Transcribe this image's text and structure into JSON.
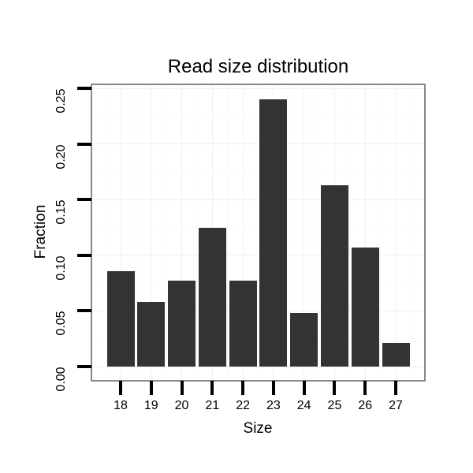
{
  "chart_data": {
    "type": "bar",
    "title": "Read size distribution",
    "xlabel": "Size",
    "ylabel": "Fraction",
    "categories": [
      "18",
      "19",
      "20",
      "21",
      "22",
      "23",
      "24",
      "25",
      "26",
      "27"
    ],
    "values": [
      0.086,
      0.058,
      0.077,
      0.125,
      0.077,
      0.24,
      0.048,
      0.163,
      0.107,
      0.021
    ],
    "y_tick_labels": [
      "0.00",
      "0.05",
      "0.10",
      "0.15",
      "0.20",
      "0.25"
    ],
    "ylim": [
      0,
      0.2525
    ],
    "grid": "on",
    "grid_minor_step": 0.025,
    "legend_position": "none",
    "colors": {
      "bar_fill": "#333333",
      "panel_border": "#878787",
      "tick": "#000000",
      "grid_major": "#f0f0f0",
      "grid_minor": "#fafafa",
      "background": "#ffffff",
      "text": "#000000"
    }
  }
}
